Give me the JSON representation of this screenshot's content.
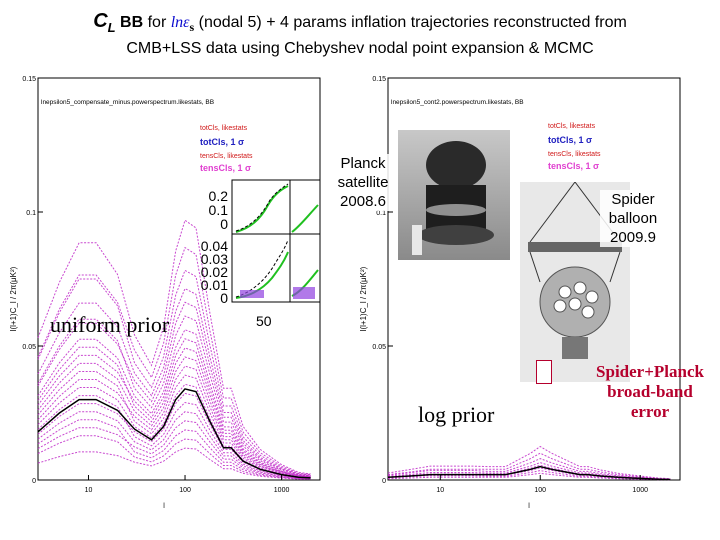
{
  "title": {
    "cl_symbol": "C",
    "cl_sub": "L",
    "bb": "BB",
    "for": "for",
    "ln_eps": "lnε",
    "eps_sub": "s",
    "rest": "(nodal 5) + 4 params inflation trajectories reconstructed from",
    "line2": "CMB+LSS data using Chebyshev nodal point expansion & MCMC"
  },
  "labels": {
    "planck": [
      "Planck",
      "satellite",
      "2008.6"
    ],
    "spider": [
      "Spider",
      "balloon",
      "2009.9"
    ],
    "uniform_prior": "uniform prior",
    "log_prior": "log prior",
    "combo": [
      "Spider+Planck",
      "broad-band",
      "error"
    ],
    "inset_top_ticks": [
      "0.2",
      "0.1",
      "0"
    ],
    "inset_bottom_ticks": [
      "0.04",
      "0.03",
      "0.02",
      "0.01",
      "0"
    ],
    "inset_xtick": "50"
  },
  "colors": {
    "trajectories": "#c028c8",
    "mean": "#000000",
    "legend_red": "#d01818",
    "legend_blue": "#2020c0",
    "legend_pink": "#e040d0",
    "inset_green": "#20c020",
    "combo_label": "#b5002d"
  },
  "chart_data": [
    {
      "type": "line",
      "panel": "left",
      "title": "lnepsilon5_compensate_minus.powerspectrum.likestats, BB",
      "ylabel": "l(l+1)C_l / 2π(μK²)",
      "xlabel": "l",
      "x_scale": "log",
      "xlim": [
        3,
        2500
      ],
      "ylim": [
        0,
        0.15
      ],
      "yticks": [
        "0.15",
        "0.1",
        "0.05",
        "0"
      ],
      "xticks": [
        "10",
        "100",
        "1000"
      ],
      "legend": [
        "totCls, likestats",
        "totCls, 1 σ",
        "tensCls, likestats",
        "tensCls, 1 σ"
      ],
      "mean_series": {
        "x": [
          3,
          5,
          8,
          12,
          20,
          30,
          45,
          60,
          80,
          100,
          130,
          180,
          250,
          300,
          400,
          600,
          1000,
          1500,
          2000
        ],
        "y": [
          0.018,
          0.025,
          0.03,
          0.03,
          0.026,
          0.019,
          0.015,
          0.02,
          0.03,
          0.034,
          0.033,
          0.022,
          0.012,
          0.012,
          0.007,
          0.004,
          0.002,
          0.001,
          0.0008
        ]
      },
      "trajectory_scales": [
        0.35,
        0.45,
        0.55,
        0.65,
        0.75,
        0.85,
        0.95,
        1.05,
        1.15,
        1.25,
        1.35,
        1.45,
        1.55,
        1.65,
        1.8,
        1.95,
        2.1,
        2.3,
        2.55,
        2.85
      ],
      "annotation": "uniform prior"
    },
    {
      "type": "line",
      "panel": "right",
      "title": "lnepsilon5_cont2.powerspectrum.likestats, BB",
      "ylabel": "l(l+1)C_l / 2π(μK²)",
      "xlabel": "l",
      "x_scale": "log",
      "xlim": [
        3,
        2500
      ],
      "ylim": [
        0,
        0.15
      ],
      "yticks": [
        "0.15",
        "0.1",
        "0.05",
        "0"
      ],
      "xticks": [
        "10",
        "100",
        "1000"
      ],
      "legend": [
        "totCls, likestats",
        "totCls, 1 σ",
        "tensCls, likestats",
        "tensCls, 1 σ"
      ],
      "mean_series": {
        "x": [
          3,
          5,
          8,
          12,
          20,
          30,
          45,
          60,
          80,
          100,
          130,
          180,
          250,
          300,
          400,
          600,
          1000,
          1500,
          2000
        ],
        "y": [
          0.001,
          0.0015,
          0.002,
          0.002,
          0.002,
          0.002,
          0.002,
          0.003,
          0.004,
          0.005,
          0.004,
          0.003,
          0.002,
          0.002,
          0.0015,
          0.001,
          0.0006,
          0.0003,
          0.0002
        ]
      },
      "trajectory_scales": [
        0.5,
        0.7,
        0.9,
        1.1,
        1.3,
        1.6,
        2.0,
        2.5
      ],
      "annotation": "log prior"
    }
  ]
}
